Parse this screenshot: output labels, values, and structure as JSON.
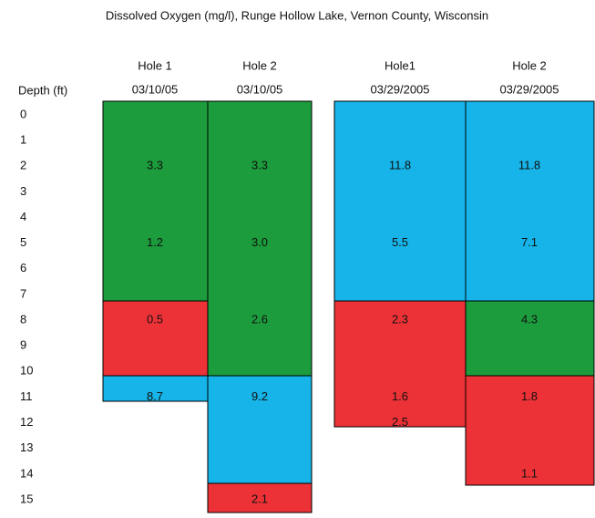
{
  "title": "Dissolved Oxygen (mg/l), Runge Hollow Lake, Vernon County, Wisconsin",
  "depth_header": "Depth (ft)",
  "depths": [
    "0",
    "1",
    "2",
    "3",
    "4",
    "5",
    "6",
    "7",
    "8",
    "9",
    "10",
    "11",
    "12",
    "13",
    "14",
    "15"
  ],
  "columns": [
    {
      "name": "Hole 1",
      "date": "03/10/05",
      "values": [
        null,
        null,
        "3.3",
        null,
        null,
        "1.2",
        null,
        null,
        "0.5",
        null,
        null,
        "8.7",
        null,
        null,
        null,
        null
      ]
    },
    {
      "name": "Hole 2",
      "date": "03/10/05",
      "values": [
        null,
        null,
        "3.3",
        null,
        null,
        "3.0",
        null,
        null,
        "2.6",
        null,
        null,
        "9.2",
        null,
        null,
        null,
        "2.1"
      ]
    },
    {
      "name": "Hole1",
      "date": "03/29/2005",
      "values": [
        null,
        null,
        "11.8",
        null,
        null,
        "5.5",
        null,
        null,
        "2.3",
        null,
        null,
        "1.6",
        "2.5",
        null,
        null,
        null
      ]
    },
    {
      "name": "Hole 2",
      "date": "03/29/2005",
      "values": [
        null,
        null,
        "11.8",
        null,
        null,
        "7.1",
        null,
        null,
        "4.3",
        null,
        null,
        "1.8",
        null,
        null,
        "1.1",
        null
      ]
    }
  ]
}
